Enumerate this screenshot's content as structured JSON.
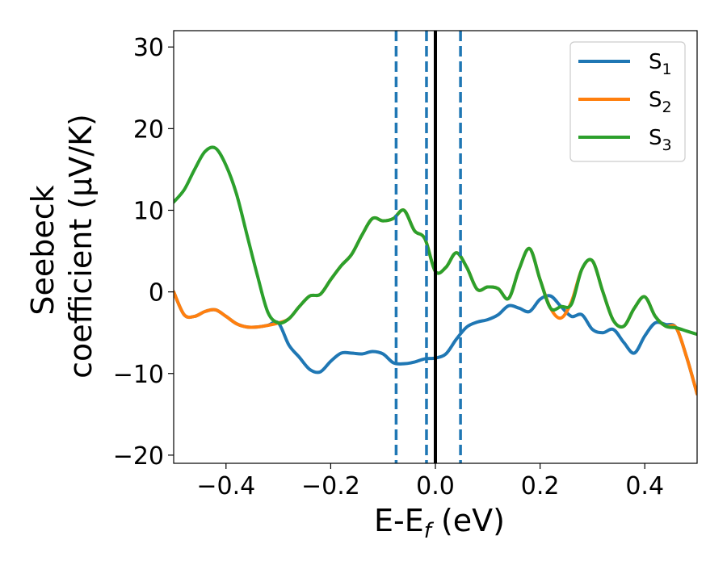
{
  "chart_data": {
    "type": "line",
    "xlabel": "E-E",
    "xlabel_sub": "f",
    "xlabel_unit": " (eV)",
    "ylabel_line1": "Seebeck",
    "ylabel_line2": "coefficient  (μV/K)",
    "xlim": [
      -0.5,
      0.5
    ],
    "ylim": [
      -21,
      32
    ],
    "xticks": [
      -0.4,
      -0.2,
      0.0,
      0.2,
      0.4
    ],
    "xtick_labels": [
      "−0.4",
      "−0.2",
      "0.0",
      "0.2",
      "0.4"
    ],
    "yticks": [
      -20,
      -10,
      0,
      10,
      20,
      30
    ],
    "ytick_labels": [
      "−20",
      "−10",
      "0",
      "10",
      "20",
      "30"
    ],
    "grid": false,
    "legend_position": "top-right",
    "vlines": [
      {
        "x": -0.075,
        "style": "dashed",
        "color": "#1f77b4"
      },
      {
        "x": -0.017,
        "style": "dashed",
        "color": "#1f77b4"
      },
      {
        "x": 0.0,
        "style": "solid",
        "color": "#000000"
      },
      {
        "x": 0.048,
        "style": "dashed",
        "color": "#1f77b4"
      }
    ],
    "series": [
      {
        "name": "S",
        "sub": "1",
        "color": "#1f77b4",
        "x": [
          -0.5,
          -0.48,
          -0.46,
          -0.44,
          -0.42,
          -0.4,
          -0.38,
          -0.36,
          -0.34,
          -0.32,
          -0.3,
          -0.28,
          -0.26,
          -0.24,
          -0.22,
          -0.2,
          -0.18,
          -0.16,
          -0.14,
          -0.12,
          -0.1,
          -0.08,
          -0.06,
          -0.04,
          -0.02,
          0.0,
          0.02,
          0.04,
          0.06,
          0.08,
          0.1,
          0.12,
          0.14,
          0.16,
          0.18,
          0.2,
          0.22,
          0.24,
          0.26,
          0.28,
          0.3,
          0.32,
          0.34,
          0.36,
          0.38,
          0.4,
          0.42,
          0.44,
          0.46,
          0.48,
          0.5
        ],
        "y": [
          0.0,
          -2.8,
          -3.0,
          -2.4,
          -2.2,
          -3.0,
          -3.9,
          -4.3,
          -4.3,
          -4.1,
          -3.8,
          -6.5,
          -8.0,
          -9.5,
          -9.8,
          -8.5,
          -7.5,
          -7.5,
          -7.6,
          -7.3,
          -7.6,
          -8.7,
          -8.8,
          -8.6,
          -8.2,
          -8.1,
          -7.6,
          -5.8,
          -4.3,
          -3.7,
          -3.4,
          -2.8,
          -1.7,
          -2.0,
          -2.4,
          -0.9,
          -0.5,
          -1.8,
          -3.0,
          -2.8,
          -4.6,
          -5.0,
          -4.6,
          -6.2,
          -7.5,
          -5.4,
          -3.8,
          -4.0,
          -4.4,
          -8.0,
          -12.5
        ]
      },
      {
        "name": "S",
        "sub": "2",
        "color": "#ff7f0e",
        "x": [
          -0.5,
          -0.48,
          -0.46,
          -0.44,
          -0.42,
          -0.4,
          -0.38,
          -0.36,
          -0.34,
          -0.32,
          -0.3,
          -0.28,
          -0.26,
          -0.24,
          -0.22,
          -0.2,
          -0.18,
          -0.16,
          -0.14,
          -0.12,
          -0.1,
          -0.08,
          -0.06,
          -0.04,
          -0.02,
          0.0,
          0.02,
          0.04,
          0.06,
          0.08,
          0.1,
          0.12,
          0.14,
          0.16,
          0.18,
          0.2,
          0.22,
          0.24,
          0.26,
          0.28,
          0.3,
          0.32,
          0.34,
          0.36,
          0.38,
          0.4,
          0.42,
          0.44,
          0.46,
          0.48,
          0.5
        ],
        "y": [
          0.0,
          -2.8,
          -3.0,
          -2.4,
          -2.2,
          -3.0,
          -3.9,
          -4.3,
          -4.3,
          -4.1,
          -3.8,
          -3.3,
          -1.8,
          -0.5,
          -0.3,
          1.5,
          3.2,
          4.6,
          7.0,
          9.0,
          8.7,
          9.0,
          10.0,
          7.5,
          6.5,
          2.5,
          3.0,
          4.8,
          3.0,
          0.3,
          0.6,
          0.4,
          -0.8,
          2.8,
          5.3,
          1.5,
          -2.0,
          -3.2,
          -1.2,
          2.8,
          3.8,
          0.0,
          -3.5,
          -4.2,
          -2.0,
          -0.6,
          -3.0,
          -4.2,
          -4.4,
          -8.0,
          -12.5
        ]
      },
      {
        "name": "S",
        "sub": "3",
        "color": "#2ca02c",
        "x": [
          -0.5,
          -0.48,
          -0.46,
          -0.44,
          -0.42,
          -0.4,
          -0.38,
          -0.36,
          -0.34,
          -0.32,
          -0.3,
          -0.28,
          -0.26,
          -0.24,
          -0.22,
          -0.2,
          -0.18,
          -0.16,
          -0.14,
          -0.12,
          -0.1,
          -0.08,
          -0.06,
          -0.04,
          -0.02,
          0.0,
          0.02,
          0.04,
          0.06,
          0.08,
          0.1,
          0.12,
          0.14,
          0.16,
          0.18,
          0.2,
          0.22,
          0.24,
          0.26,
          0.28,
          0.3,
          0.32,
          0.34,
          0.36,
          0.38,
          0.4,
          0.42,
          0.44,
          0.46,
          0.48,
          0.5
        ],
        "y": [
          11.0,
          12.5,
          15.0,
          17.2,
          17.6,
          15.5,
          12.0,
          7.0,
          2.0,
          -2.5,
          -3.8,
          -3.3,
          -1.8,
          -0.5,
          -0.3,
          1.5,
          3.2,
          4.6,
          7.0,
          9.0,
          8.7,
          9.0,
          10.0,
          7.5,
          6.5,
          2.5,
          3.0,
          4.8,
          3.0,
          0.3,
          0.6,
          0.4,
          -0.8,
          2.8,
          5.3,
          1.5,
          -2.0,
          -1.8,
          -1.5,
          2.8,
          3.8,
          0.0,
          -3.5,
          -4.2,
          -2.0,
          -0.6,
          -3.0,
          -4.2,
          -4.4,
          -4.8,
          -5.2
        ]
      }
    ]
  }
}
